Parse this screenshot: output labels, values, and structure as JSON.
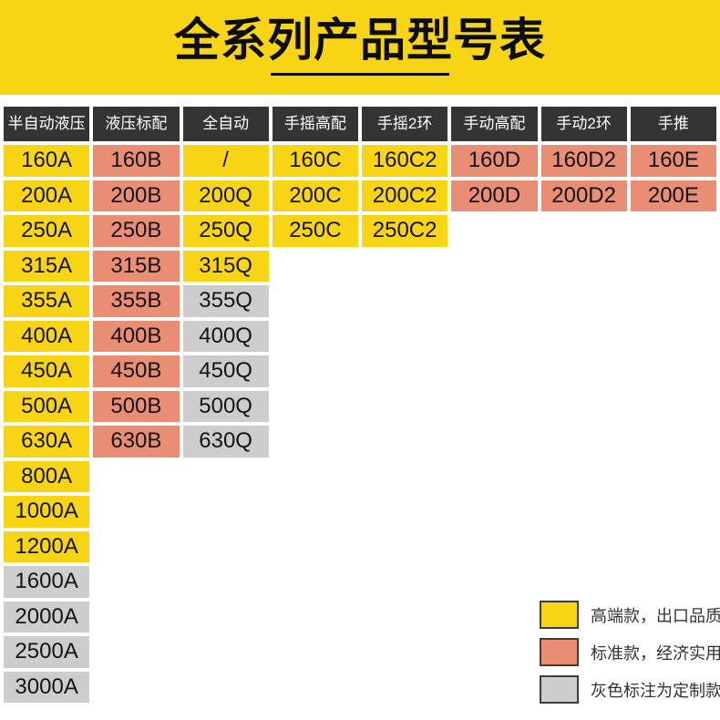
{
  "colors": {
    "banner": "#F7D514",
    "yellow": "#F7D514",
    "salmon": "#E98D75",
    "gray": "#CDCDCD",
    "header_bg": "#343434",
    "header_text": "#FFFFFF",
    "cell_text": "#141414"
  },
  "chart_data": {
    "type": "table",
    "title": "全系列产品型号表",
    "legend_position": "bottom-right",
    "columns": [
      {
        "header": "半自动液压",
        "cells": [
          {
            "label": "160A",
            "type": "yellow"
          },
          {
            "label": "200A",
            "type": "yellow"
          },
          {
            "label": "250A",
            "type": "yellow"
          },
          {
            "label": "315A",
            "type": "yellow"
          },
          {
            "label": "355A",
            "type": "yellow"
          },
          {
            "label": "400A",
            "type": "yellow"
          },
          {
            "label": "450A",
            "type": "yellow"
          },
          {
            "label": "500A",
            "type": "yellow"
          },
          {
            "label": "630A",
            "type": "yellow"
          },
          {
            "label": "800A",
            "type": "yellow"
          },
          {
            "label": "1000A",
            "type": "yellow"
          },
          {
            "label": "1200A",
            "type": "yellow"
          },
          {
            "label": "1600A",
            "type": "gray"
          },
          {
            "label": "2000A",
            "type": "gray"
          },
          {
            "label": "2500A",
            "type": "gray"
          },
          {
            "label": "3000A",
            "type": "gray"
          }
        ]
      },
      {
        "header": "液压标配",
        "cells": [
          {
            "label": "160B",
            "type": "salmon"
          },
          {
            "label": "200B",
            "type": "salmon"
          },
          {
            "label": "250B",
            "type": "salmon"
          },
          {
            "label": "315B",
            "type": "salmon"
          },
          {
            "label": "355B",
            "type": "salmon"
          },
          {
            "label": "400B",
            "type": "salmon"
          },
          {
            "label": "450B",
            "type": "salmon"
          },
          {
            "label": "500B",
            "type": "salmon"
          },
          {
            "label": "630B",
            "type": "salmon"
          }
        ]
      },
      {
        "header": "全自动",
        "cells": [
          {
            "label": "/",
            "type": "yellow"
          },
          {
            "label": "200Q",
            "type": "yellow"
          },
          {
            "label": "250Q",
            "type": "yellow"
          },
          {
            "label": "315Q",
            "type": "yellow"
          },
          {
            "label": "355Q",
            "type": "gray"
          },
          {
            "label": "400Q",
            "type": "gray"
          },
          {
            "label": "450Q",
            "type": "gray"
          },
          {
            "label": "500Q",
            "type": "gray"
          },
          {
            "label": "630Q",
            "type": "gray"
          }
        ]
      },
      {
        "header": "手摇高配",
        "cells": [
          {
            "label": "160C",
            "type": "yellow"
          },
          {
            "label": "200C",
            "type": "yellow"
          },
          {
            "label": "250C",
            "type": "yellow"
          }
        ]
      },
      {
        "header": "手摇2环",
        "cells": [
          {
            "label": "160C2",
            "type": "yellow"
          },
          {
            "label": "200C2",
            "type": "yellow"
          },
          {
            "label": "250C2",
            "type": "yellow"
          }
        ]
      },
      {
        "header": "手动高配",
        "cells": [
          {
            "label": "160D",
            "type": "salmon"
          },
          {
            "label": "200D",
            "type": "salmon"
          }
        ]
      },
      {
        "header": "手动2环",
        "cells": [
          {
            "label": "160D2",
            "type": "salmon"
          },
          {
            "label": "200D2",
            "type": "salmon"
          }
        ]
      },
      {
        "header": "手推",
        "cells": [
          {
            "label": "160E",
            "type": "salmon"
          },
          {
            "label": "200E",
            "type": "salmon"
          }
        ]
      }
    ],
    "legend": [
      {
        "swatch": "yellow",
        "label": "高端款，出口品质"
      },
      {
        "swatch": "salmon",
        "label": "标准款，经济实用"
      },
      {
        "swatch": "gray",
        "label": "灰色标注为定制款"
      }
    ]
  }
}
